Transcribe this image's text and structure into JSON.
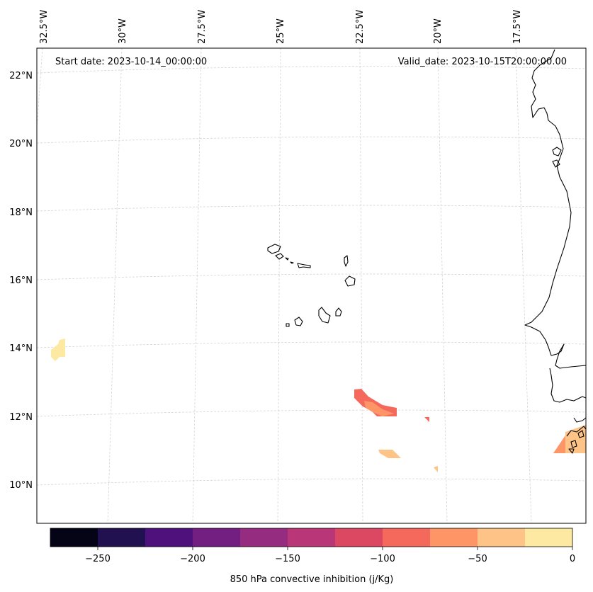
{
  "map": {
    "start_label": "Start date: 2023-10-14_00:00:00",
    "valid_label": "Valid_date: 2023-10-15T20:00:00.00",
    "lon_labels": [
      "32.5°W",
      "30°W",
      "27.5°W",
      "25°W",
      "22.5°W",
      "20°W",
      "17.5°W"
    ],
    "lat_labels": [
      "22°N",
      "20°N",
      "18°N",
      "16°N",
      "14°N",
      "12°N",
      "10°N"
    ]
  },
  "colorbar": {
    "label": "850 hPa convective inhibition (j/Kg)",
    "ticks": [
      "−250",
      "−200",
      "−150",
      "−100",
      "−50",
      "0"
    ],
    "colors": [
      "#050417",
      "#221150",
      "#4f117b",
      "#731f81",
      "#952c80",
      "#b93778",
      "#dc4862",
      "#f4695c",
      "#fe9566",
      "#fec387",
      "#fde9a2"
    ]
  },
  "colors": {
    "coast": "#000000",
    "grid": "#cccccc",
    "patch_yellow": "#fde9a2",
    "patch_salmon": "#f4695c",
    "patch_orange": "#fe9566",
    "patch_peach": "#fec387"
  }
}
